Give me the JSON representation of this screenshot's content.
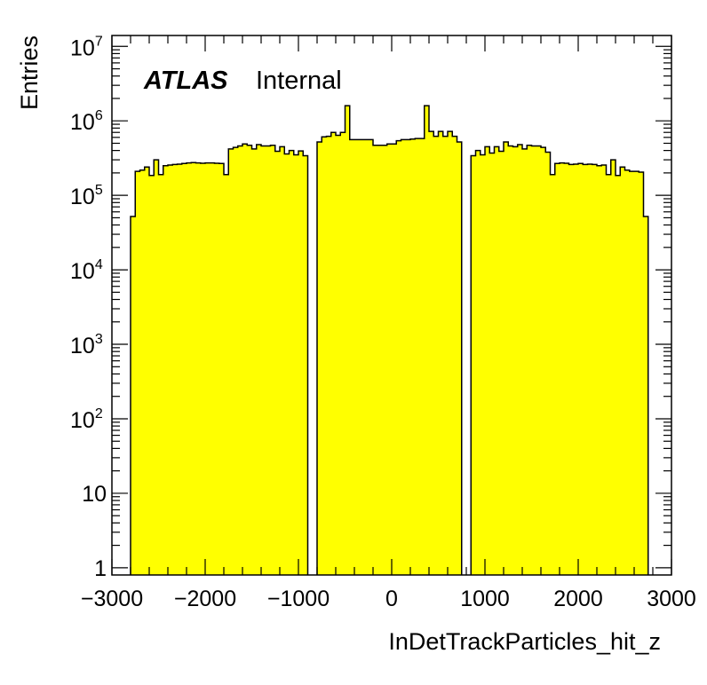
{
  "chart_data": {
    "type": "bar",
    "histogram": true,
    "log_y": true,
    "grid": false,
    "legend": "none",
    "xlabel": "InDetTrackParticles_hit_z",
    "ylabel": "Entries",
    "xlim": [
      -3000,
      3000
    ],
    "ylim": [
      0.8,
      14000000
    ],
    "bin_width": 50,
    "fill_color": "#ffff00",
    "line_color": "#000000",
    "annotation": {
      "bold": "ATLAS",
      "text": "Internal"
    },
    "x_ticks": [
      {
        "value": -3000,
        "label": "−3000"
      },
      {
        "value": -2000,
        "label": "−2000"
      },
      {
        "value": -1000,
        "label": "−1000"
      },
      {
        "value": 0,
        "label": "0"
      },
      {
        "value": 1000,
        "label": "1000"
      },
      {
        "value": 2000,
        "label": "2000"
      },
      {
        "value": 3000,
        "label": "3000"
      }
    ],
    "y_ticks": [
      {
        "value": 1,
        "base": "1",
        "exp": ""
      },
      {
        "value": 10,
        "base": "10",
        "exp": ""
      },
      {
        "value": 100,
        "base": "10",
        "exp": "2"
      },
      {
        "value": 1000,
        "base": "10",
        "exp": "3"
      },
      {
        "value": 10000,
        "base": "10",
        "exp": "4"
      },
      {
        "value": 100000,
        "base": "10",
        "exp": "5"
      },
      {
        "value": 1000000,
        "base": "10",
        "exp": "6"
      },
      {
        "value": 10000000,
        "base": "10",
        "exp": "7"
      }
    ],
    "bins": [
      {
        "x0": -2800,
        "y": 52000
      },
      {
        "x0": -2750,
        "y": 210000
      },
      {
        "x0": -2700,
        "y": 218000
      },
      {
        "x0": -2650,
        "y": 240000
      },
      {
        "x0": -2600,
        "y": 185000
      },
      {
        "x0": -2550,
        "y": 300000
      },
      {
        "x0": -2500,
        "y": 190000
      },
      {
        "x0": -2450,
        "y": 250000
      },
      {
        "x0": -2400,
        "y": 255000
      },
      {
        "x0": -2350,
        "y": 260000
      },
      {
        "x0": -2300,
        "y": 262000
      },
      {
        "x0": -2250,
        "y": 268000
      },
      {
        "x0": -2200,
        "y": 272000
      },
      {
        "x0": -2150,
        "y": 275000
      },
      {
        "x0": -2100,
        "y": 272000
      },
      {
        "x0": -2050,
        "y": 270000
      },
      {
        "x0": -2000,
        "y": 272000
      },
      {
        "x0": -1950,
        "y": 272000
      },
      {
        "x0": -1900,
        "y": 270000
      },
      {
        "x0": -1850,
        "y": 268000
      },
      {
        "x0": -1800,
        "y": 190000
      },
      {
        "x0": -1750,
        "y": 420000
      },
      {
        "x0": -1700,
        "y": 440000
      },
      {
        "x0": -1650,
        "y": 460000
      },
      {
        "x0": -1600,
        "y": 490000
      },
      {
        "x0": -1550,
        "y": 470000
      },
      {
        "x0": -1500,
        "y": 420000
      },
      {
        "x0": -1450,
        "y": 480000
      },
      {
        "x0": -1400,
        "y": 460000
      },
      {
        "x0": -1350,
        "y": 460000
      },
      {
        "x0": -1300,
        "y": 470000
      },
      {
        "x0": -1250,
        "y": 390000
      },
      {
        "x0": -1200,
        "y": 450000
      },
      {
        "x0": -1150,
        "y": 360000
      },
      {
        "x0": -1100,
        "y": 400000
      },
      {
        "x0": -1050,
        "y": 350000
      },
      {
        "x0": -1000,
        "y": 395000
      },
      {
        "x0": -950,
        "y": 340000
      },
      {
        "x0": -800,
        "y": 520000
      },
      {
        "x0": -750,
        "y": 610000
      },
      {
        "x0": -700,
        "y": 620000
      },
      {
        "x0": -650,
        "y": 700000
      },
      {
        "x0": -600,
        "y": 640000
      },
      {
        "x0": -550,
        "y": 700000
      },
      {
        "x0": -500,
        "y": 1600000
      },
      {
        "x0": -450,
        "y": 560000
      },
      {
        "x0": -400,
        "y": 560000
      },
      {
        "x0": -350,
        "y": 560000
      },
      {
        "x0": -300,
        "y": 560000
      },
      {
        "x0": -250,
        "y": 560000
      },
      {
        "x0": -200,
        "y": 470000
      },
      {
        "x0": -150,
        "y": 470000
      },
      {
        "x0": -100,
        "y": 470000
      },
      {
        "x0": -50,
        "y": 490000
      },
      {
        "x0": 0,
        "y": 490000
      },
      {
        "x0": 50,
        "y": 540000
      },
      {
        "x0": 100,
        "y": 560000
      },
      {
        "x0": 150,
        "y": 560000
      },
      {
        "x0": 200,
        "y": 570000
      },
      {
        "x0": 250,
        "y": 580000
      },
      {
        "x0": 300,
        "y": 580000
      },
      {
        "x0": 350,
        "y": 1600000
      },
      {
        "x0": 400,
        "y": 720000
      },
      {
        "x0": 450,
        "y": 620000
      },
      {
        "x0": 500,
        "y": 720000
      },
      {
        "x0": 550,
        "y": 620000
      },
      {
        "x0": 600,
        "y": 720000
      },
      {
        "x0": 650,
        "y": 620000
      },
      {
        "x0": 700,
        "y": 520000
      },
      {
        "x0": 850,
        "y": 340000
      },
      {
        "x0": 900,
        "y": 400000
      },
      {
        "x0": 950,
        "y": 350000
      },
      {
        "x0": 1000,
        "y": 450000
      },
      {
        "x0": 1050,
        "y": 370000
      },
      {
        "x0": 1100,
        "y": 450000
      },
      {
        "x0": 1150,
        "y": 390000
      },
      {
        "x0": 1200,
        "y": 520000
      },
      {
        "x0": 1250,
        "y": 460000
      },
      {
        "x0": 1300,
        "y": 450000
      },
      {
        "x0": 1350,
        "y": 480000
      },
      {
        "x0": 1400,
        "y": 420000
      },
      {
        "x0": 1450,
        "y": 470000
      },
      {
        "x0": 1500,
        "y": 460000
      },
      {
        "x0": 1550,
        "y": 460000
      },
      {
        "x0": 1600,
        "y": 440000
      },
      {
        "x0": 1650,
        "y": 380000
      },
      {
        "x0": 1700,
        "y": 190000
      },
      {
        "x0": 1750,
        "y": 268000
      },
      {
        "x0": 1800,
        "y": 272000
      },
      {
        "x0": 1850,
        "y": 270000
      },
      {
        "x0": 1900,
        "y": 260000
      },
      {
        "x0": 1950,
        "y": 262000
      },
      {
        "x0": 2000,
        "y": 268000
      },
      {
        "x0": 2050,
        "y": 260000
      },
      {
        "x0": 2100,
        "y": 262000
      },
      {
        "x0": 2150,
        "y": 260000
      },
      {
        "x0": 2200,
        "y": 250000
      },
      {
        "x0": 2250,
        "y": 255000
      },
      {
        "x0": 2300,
        "y": 190000
      },
      {
        "x0": 2350,
        "y": 300000
      },
      {
        "x0": 2400,
        "y": 185000
      },
      {
        "x0": 2450,
        "y": 240000
      },
      {
        "x0": 2500,
        "y": 218000
      },
      {
        "x0": 2550,
        "y": 210000
      },
      {
        "x0": 2600,
        "y": 210000
      },
      {
        "x0": 2650,
        "y": 205000
      },
      {
        "x0": 2700,
        "y": 52000
      }
    ]
  }
}
